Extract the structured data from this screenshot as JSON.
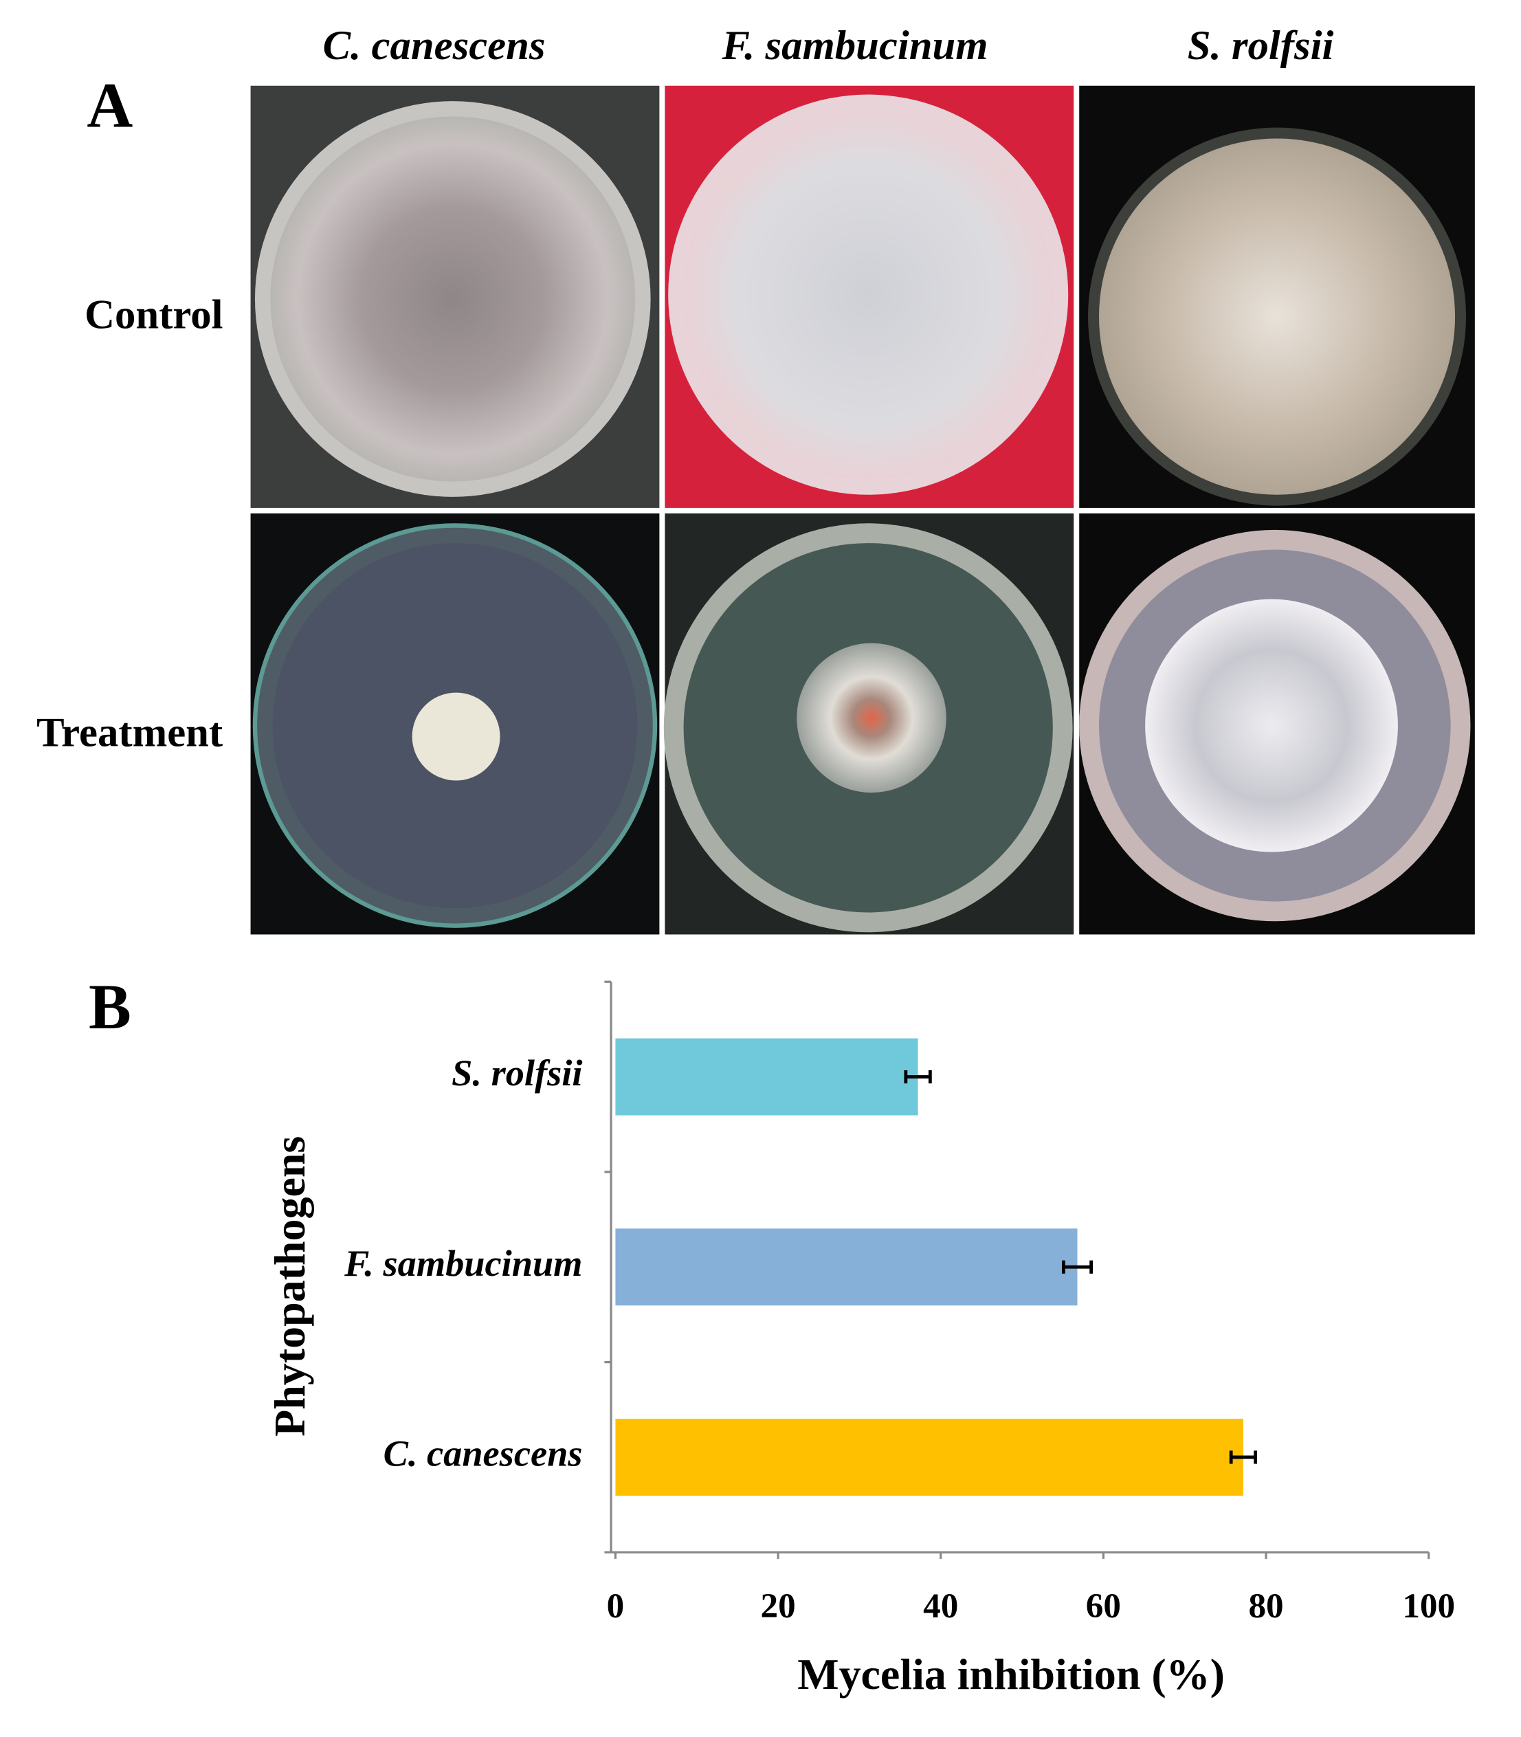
{
  "panel_a": {
    "label": "A",
    "columns": [
      "C. canescens",
      "F. sambucinum",
      "S. rolfsii"
    ],
    "rows": [
      "Control",
      "Treatment"
    ]
  },
  "chart_data": {
    "type": "bar",
    "orientation": "horizontal",
    "panel_label": "B",
    "categories": [
      "C. canescens",
      "F. sambucinum",
      "S. rolfsii"
    ],
    "values": [
      77.2,
      56.8,
      37.2
    ],
    "errors": [
      1.5,
      1.7,
      1.5
    ],
    "colors": [
      "#ffc000",
      "#86b0d8",
      "#70c9db"
    ],
    "xlim": [
      0,
      100
    ],
    "xticks": [
      0,
      20,
      40,
      60,
      80,
      100
    ],
    "xlabel": "Mycelia inhibition (%)",
    "ylabel": "Phytopathogens"
  }
}
